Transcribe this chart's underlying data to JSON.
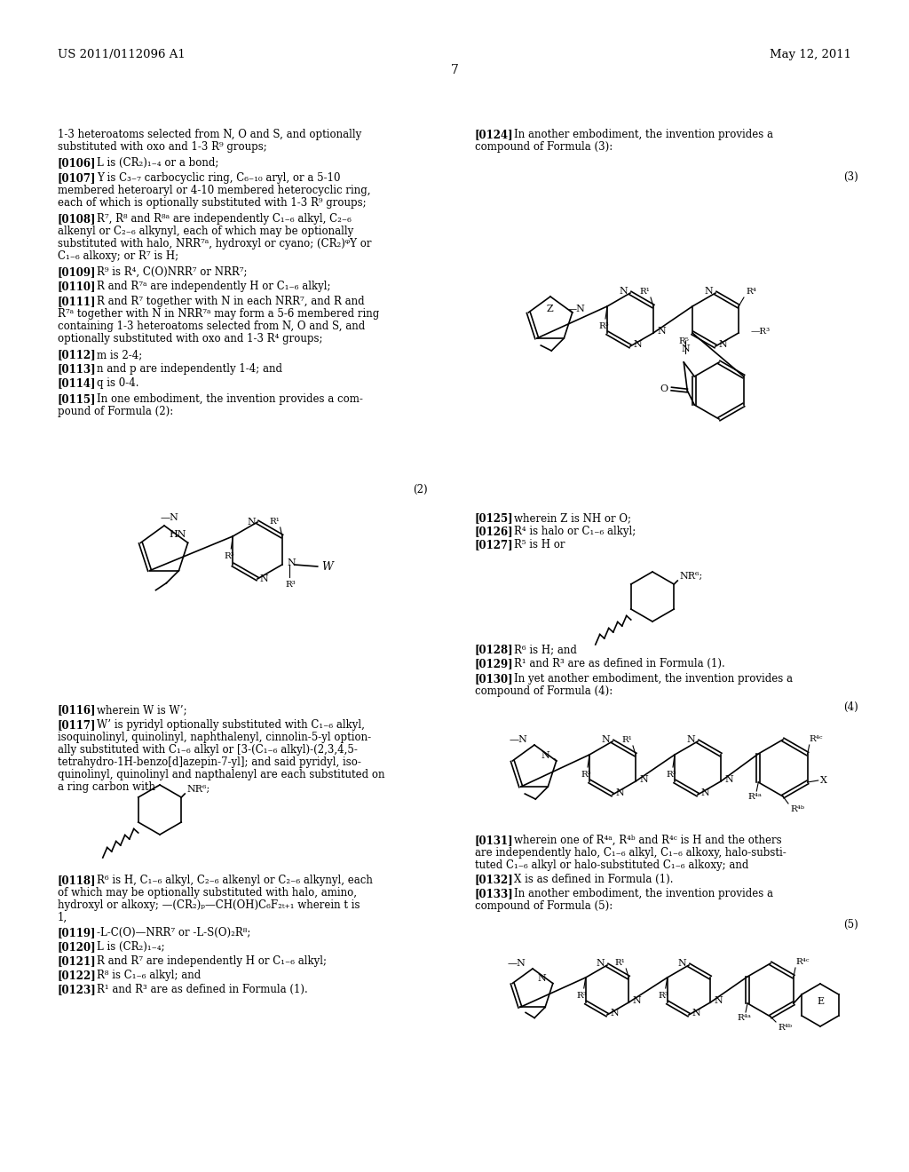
{
  "header_left": "US 2011/0112096 A1",
  "header_right": "May 12, 2011",
  "page_num": "7",
  "bg_color": "#ffffff",
  "text_color": "#000000",
  "font_size": 8.5
}
